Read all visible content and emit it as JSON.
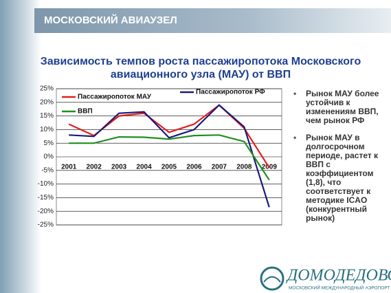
{
  "header": {
    "title": "МОСКОВСКИЙ АВИАУЗЕЛ"
  },
  "chart_data": {
    "type": "line",
    "title": "Зависимость темпов роста пассажиропотока Московского авиационного узла (МАУ) от ВВП",
    "categories": [
      "2001",
      "2002",
      "2003",
      "2004",
      "2005",
      "2006",
      "2007",
      "2008",
      "2009"
    ],
    "series": [
      {
        "name": "Пассажиропоток МАУ",
        "color": "#e0201b",
        "values": [
          12,
          7.8,
          15,
          16,
          9,
          12,
          19,
          10.5,
          -4
        ]
      },
      {
        "name": "Пассажиропоток РФ",
        "color": "#1a1a7a",
        "values": [
          8,
          7.5,
          16,
          16.5,
          7,
          10,
          19,
          11,
          -18.5
        ]
      },
      {
        "name": "ВВП",
        "color": "#1f8f1f",
        "values": [
          5,
          5,
          7.3,
          7.2,
          6.5,
          7.8,
          8,
          5.6,
          -8.5
        ]
      }
    ],
    "ylim": [
      -25,
      25
    ],
    "yticks": [
      {
        "value": -25,
        "label": "-25%"
      },
      {
        "value": -20,
        "label": "-20%"
      },
      {
        "value": -15,
        "label": "-15%"
      },
      {
        "value": -10,
        "label": "-10%"
      },
      {
        "value": -5,
        "label": "-5%"
      },
      {
        "value": 0,
        "label": "0%"
      },
      {
        "value": 5,
        "label": "5%"
      },
      {
        "value": 10,
        "label": "10%"
      },
      {
        "value": 15,
        "label": "15%"
      },
      {
        "value": 20,
        "label": "20%"
      },
      {
        "value": 25,
        "label": "25%"
      }
    ],
    "grid": true
  },
  "bullets": [
    "Рынок МАУ более устойчив к изменениям ВВП, чем рынок РФ",
    "Рынок МАУ в долгосрочном периоде, растет к ВВП с коэффициентом (1,8), что соответствует к методике ICAO (конкурентный рынок)"
  ],
  "logo": {
    "name": "ДОМОДЕДОВО",
    "tagline": "МОСКОВСКИЙ МЕЖДУНАРОДНЫЙ АЭРОПОРТ"
  }
}
